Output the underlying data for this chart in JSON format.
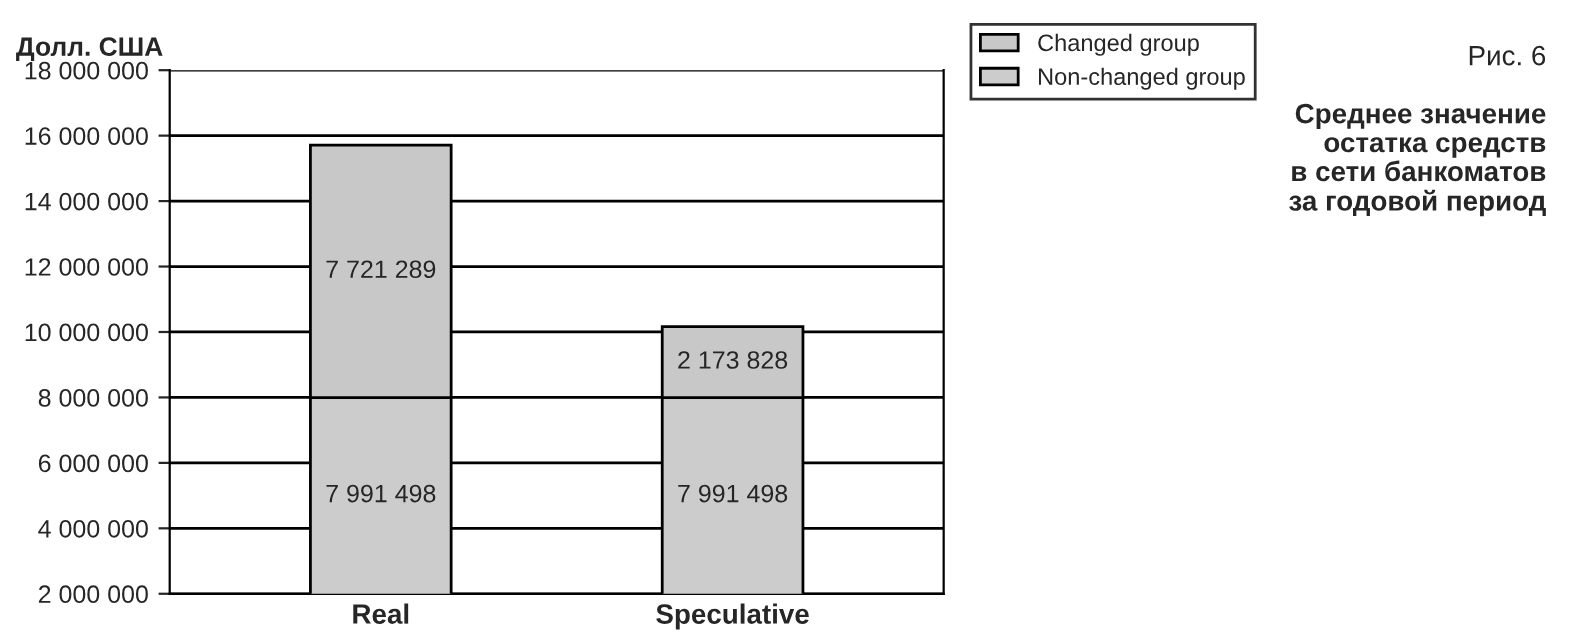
{
  "chart_data": {
    "type": "bar",
    "stacked": true,
    "title": "Рис. 6",
    "subtitle": "Среднее значение\nостатка средств\nв сети банкоматов\nза годовой период",
    "ylabel": "Долл. США",
    "categories": [
      "Real",
      "Speculative"
    ],
    "series": [
      {
        "name": "Non-changed group",
        "color": "#cccccc",
        "values": [
          7991498,
          7991498
        ],
        "value_labels": [
          "7 991 498",
          "7 991 498"
        ]
      },
      {
        "name": "Changed group",
        "color": "#c8c8c8",
        "values": [
          7721289,
          2173828
        ],
        "value_labels": [
          "7 721 289",
          "2 173 828"
        ]
      }
    ],
    "ylim": [
      2000000,
      18000000
    ],
    "yticks": [
      {
        "value": 2000000,
        "label": "2 000 000"
      },
      {
        "value": 4000000,
        "label": "4 000 000"
      },
      {
        "value": 6000000,
        "label": "6 000 000"
      },
      {
        "value": 8000000,
        "label": "8 000 000"
      },
      {
        "value": 10000000,
        "label": "10 000 000"
      },
      {
        "value": 12000000,
        "label": "12 000 000"
      },
      {
        "value": 14000000,
        "label": "14 000 000"
      },
      {
        "value": 16000000,
        "label": "16 000 000"
      },
      {
        "value": 18000000,
        "label": "18 000 000"
      }
    ],
    "grid": "y",
    "legend": "top right"
  }
}
